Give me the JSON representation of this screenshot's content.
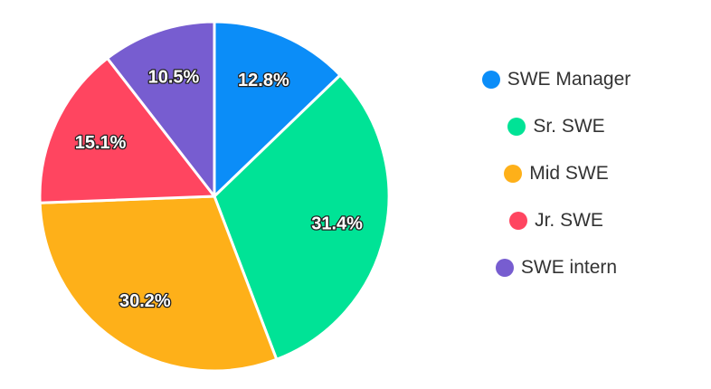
{
  "chart_data": {
    "type": "pie",
    "title": "",
    "slices": [
      {
        "label": "SWE Manager",
        "value": 12.8,
        "value_label": "12.8%",
        "color": "#0b8df8"
      },
      {
        "label": "Sr. SWE",
        "value": 31.4,
        "value_label": "31.4%",
        "color": "#00e396"
      },
      {
        "label": "Mid SWE",
        "value": 30.2,
        "value_label": "30.2%",
        "color": "#feb019"
      },
      {
        "label": "Jr. SWE",
        "value": 15.1,
        "value_label": "15.1%",
        "color": "#ff4560"
      },
      {
        "label": "SWE intern",
        "value": 10.5,
        "value_label": "10.5%",
        "color": "#775dd0"
      }
    ],
    "legend_position": "right",
    "start_angle": "top",
    "direction": "clockwise"
  }
}
